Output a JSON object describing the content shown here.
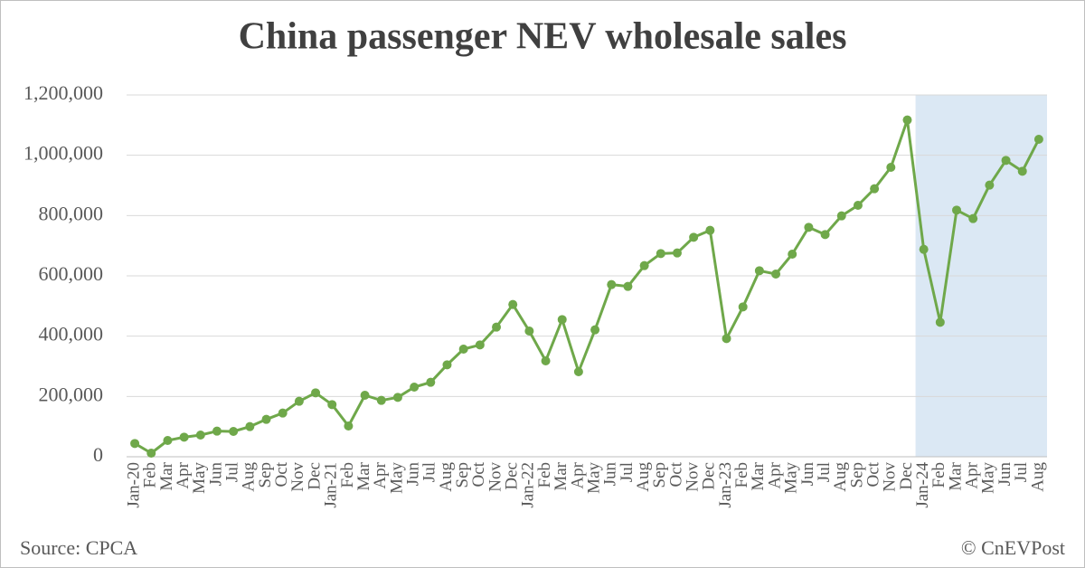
{
  "chart_data": {
    "type": "line",
    "title": "China passenger NEV wholesale sales",
    "source": "Source: CPCA",
    "credit": "© CnEVPost",
    "categories": [
      "Jan-20",
      "Feb",
      "Mar",
      "Apr",
      "May",
      "Jun",
      "Jul",
      "Aug",
      "Sep",
      "Oct",
      "Nov",
      "Dec",
      "Jan-21",
      "Feb",
      "Mar",
      "Apr",
      "May",
      "Jun",
      "Jul",
      "Aug",
      "Sep",
      "Oct",
      "Nov",
      "Dec",
      "Jan-22",
      "Feb",
      "Mar",
      "Apr",
      "May",
      "Jun",
      "Jul",
      "Aug",
      "Sep",
      "Oct",
      "Nov",
      "Dec",
      "Jan-23",
      "Feb",
      "Mar",
      "Apr",
      "May",
      "Jun",
      "Jul",
      "Aug",
      "Sep",
      "Oct",
      "Nov",
      "Dec",
      "Jan-24",
      "Feb",
      "Mar",
      "Apr",
      "May",
      "Jun",
      "Jul",
      "Aug"
    ],
    "values": [
      44000,
      12000,
      54000,
      65000,
      72000,
      85000,
      84000,
      100000,
      124000,
      145000,
      184000,
      212000,
      173000,
      102000,
      204000,
      187000,
      197000,
      231000,
      247000,
      305000,
      357000,
      371000,
      430000,
      505000,
      417000,
      318000,
      455000,
      282000,
      421000,
      571000,
      565000,
      634000,
      674000,
      676000,
      728000,
      751000,
      392000,
      497000,
      617000,
      606000,
      672000,
      761000,
      737000,
      799000,
      834000,
      889000,
      960000,
      1117000,
      688000,
      446000,
      818000,
      790000,
      901000,
      983000,
      947000,
      1053000
    ],
    "color": "#6fa84a",
    "highlight": {
      "from": 48,
      "to": 55,
      "color": "#dbe8f4"
    },
    "ylim": [
      0,
      1200000
    ],
    "yticks": [
      0,
      {
        "value": 200000,
        "label": "200,000"
      },
      {
        "value": 400000,
        "label": "400,000"
      },
      {
        "value": 600000,
        "label": "600,000"
      },
      {
        "value": 800000,
        "label": "800,000"
      },
      {
        "value": 1000000,
        "label": "1,000,000"
      },
      {
        "value": 1200000,
        "label": "1,200,000"
      }
    ],
    "grid": true
  }
}
